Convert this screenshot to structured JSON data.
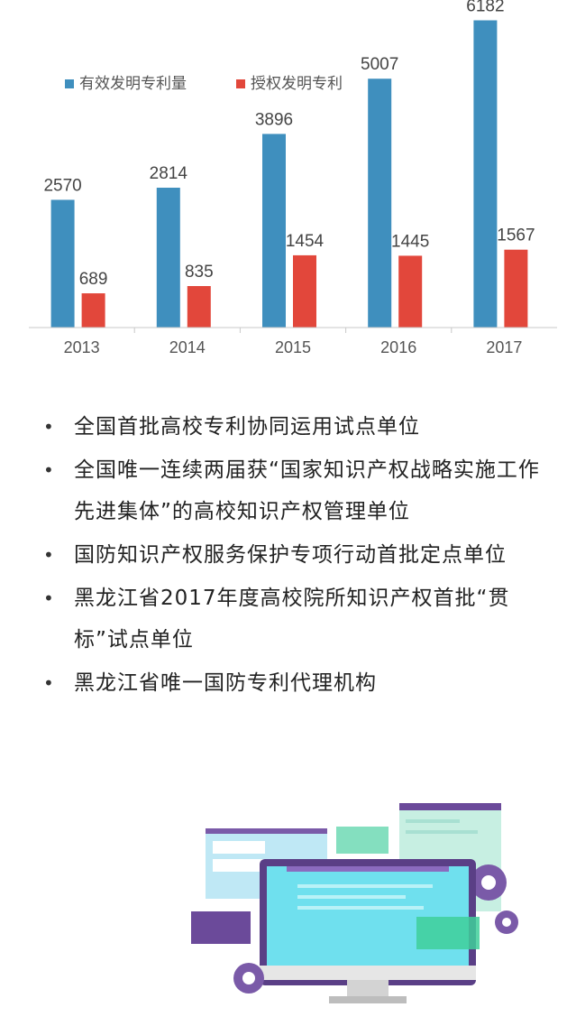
{
  "chart_data": {
    "type": "bar",
    "categories": [
      "2013",
      "2014",
      "2015",
      "2016",
      "2017"
    ],
    "series": [
      {
        "name": "有效发明专利量",
        "values": [
          2570,
          2814,
          3896,
          5007,
          6182
        ],
        "color": "#3f8fbe"
      },
      {
        "name": "授权发明专利",
        "values": [
          689,
          835,
          1454,
          1445,
          1567
        ],
        "color": "#e2473b"
      }
    ],
    "title": "",
    "xlabel": "",
    "ylabel": "",
    "ylim": [
      0,
      6500
    ],
    "grid": false,
    "legend": "top-left",
    "data_labels": true
  },
  "bullets": [
    "全国首批高校专利协同运用试点单位",
    "全国唯一连续两届获“国家知识产权战略实施工作先进集体”的高校知识产权管理单位",
    "国防知识产权服务保护专项行动首批定点单位",
    "黑龙江省2017年度高校院所知识产权首批“贯标”试点单位",
    "黑龙江省唯一国防专利代理机构"
  ],
  "bullet_symbol": "•",
  "illustration": {
    "description_icons": [
      "monitor-icon",
      "gear-icon",
      "window-icon"
    ],
    "colors": {
      "purple": "#7a5aa8",
      "teal": "#4fd1c5",
      "cyan": "#7fe3f0",
      "green": "#3fcf9a"
    }
  }
}
